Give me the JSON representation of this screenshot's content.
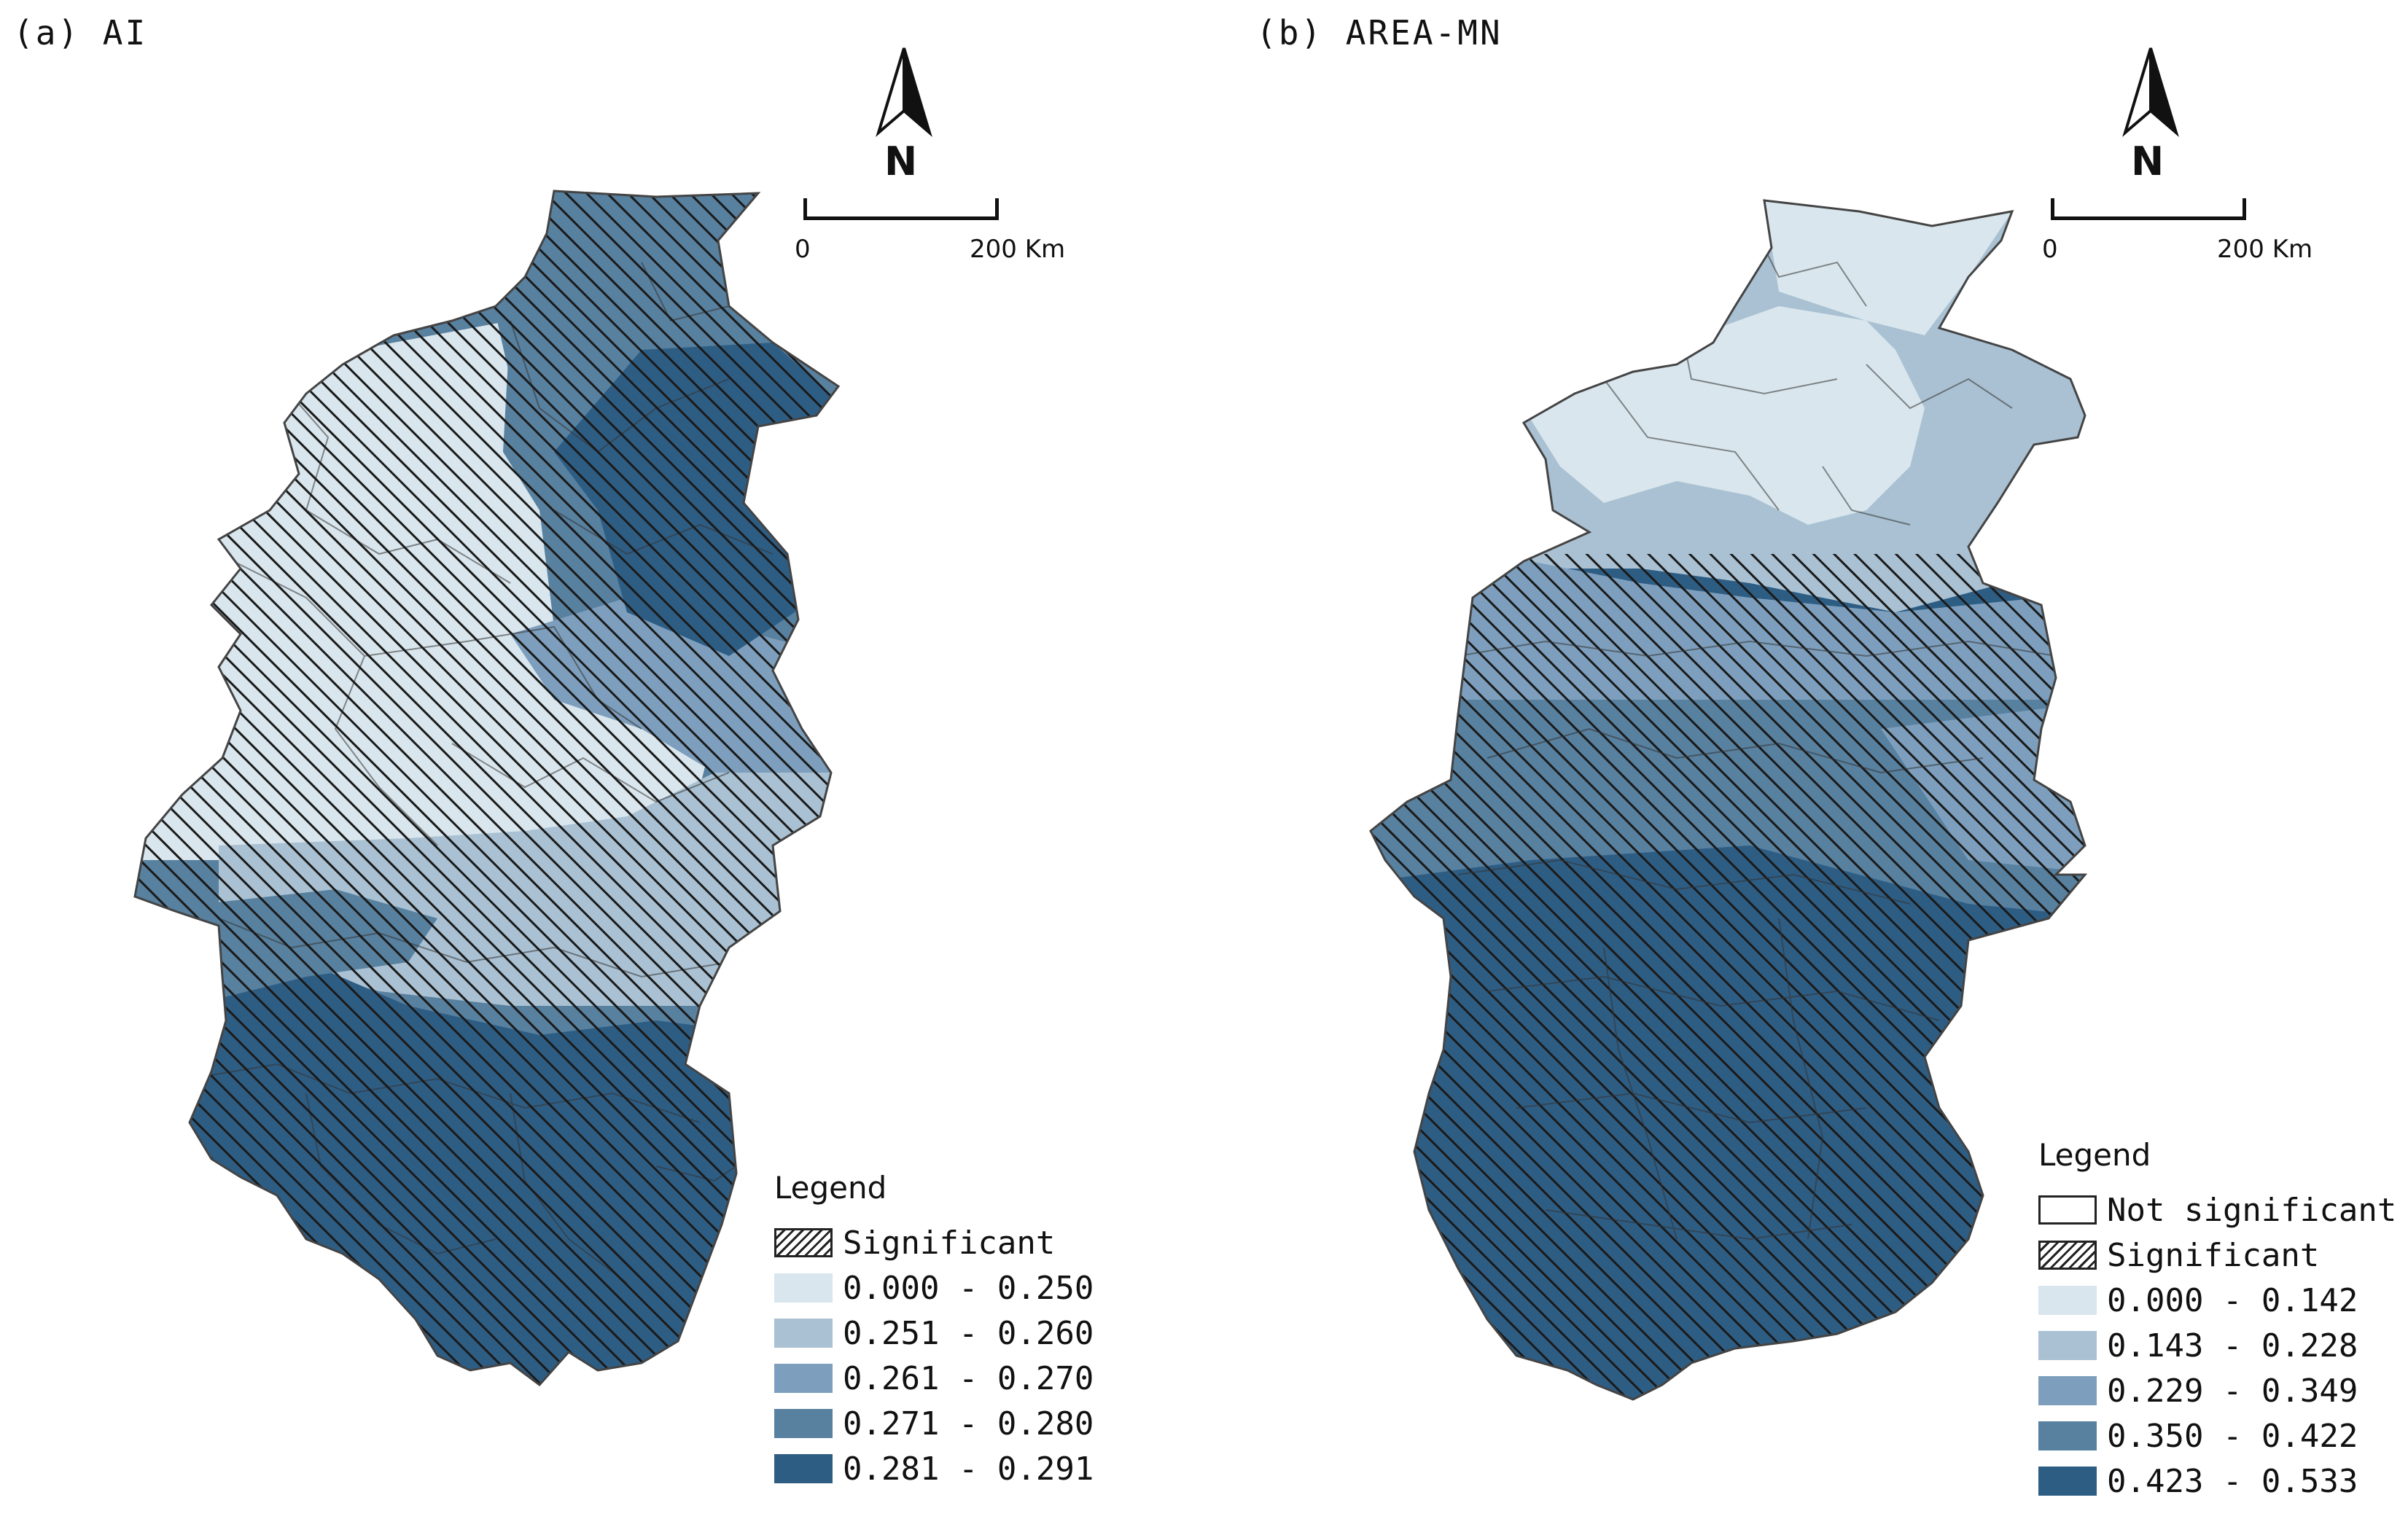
{
  "panel_a": {
    "title": "(a) AI",
    "north_label": "N",
    "scale": {
      "zero": "0",
      "max": "200 Km"
    },
    "legend": {
      "title": "Legend",
      "items": [
        {
          "label": "Significant",
          "type": "hatch"
        },
        {
          "label": "0.000 - 0.250",
          "color": "#d9e6ed"
        },
        {
          "label": "0.251 - 0.260",
          "color": "#a9c1d2"
        },
        {
          "label": "0.261 - 0.270",
          "color": "#7d9fbd"
        },
        {
          "label": "0.271 - 0.280",
          "color": "#58809f"
        },
        {
          "label": "0.281 - 0.291",
          "color": "#2e5d84"
        }
      ]
    }
  },
  "panel_b": {
    "title": "(b) AREA-MN",
    "north_label": "N",
    "scale": {
      "zero": "0",
      "max": "200 Km"
    },
    "legend": {
      "title": "Legend",
      "items": [
        {
          "label": "Not significant",
          "type": "plain"
        },
        {
          "label": "Significant",
          "type": "hatch"
        },
        {
          "label": "0.000 - 0.142",
          "color": "#d9e6ed"
        },
        {
          "label": "0.143 - 0.228",
          "color": "#a9c1d2"
        },
        {
          "label": "0.229 - 0.349",
          "color": "#7d9fbd"
        },
        {
          "label": "0.350 - 0.422",
          "color": "#58809f"
        },
        {
          "label": "0.423 - 0.533",
          "color": "#2e5d84"
        }
      ]
    }
  }
}
